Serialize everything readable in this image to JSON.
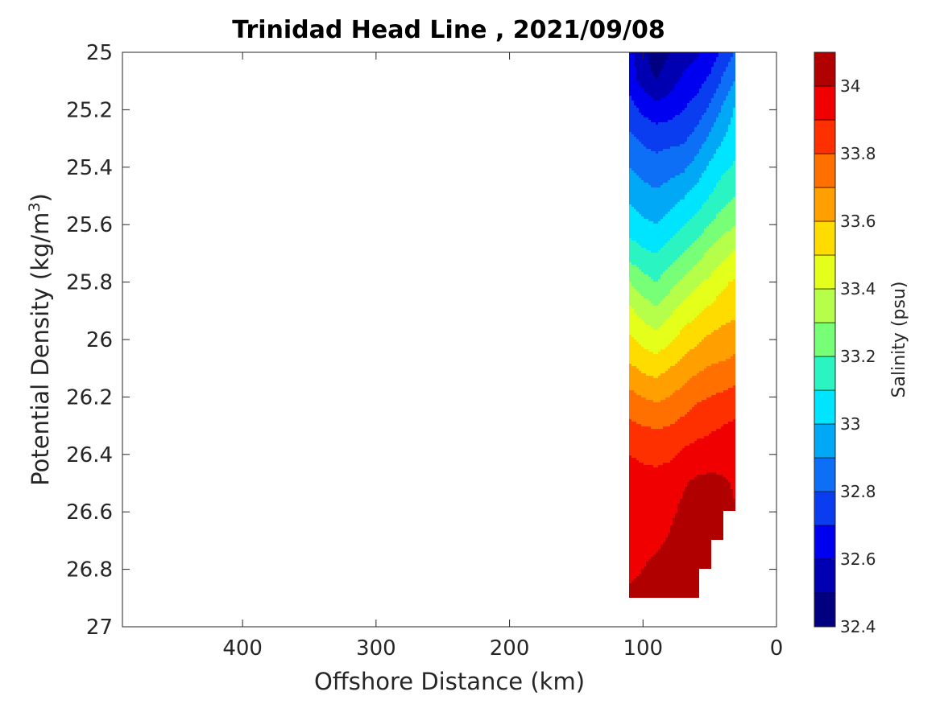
{
  "chart_data": {
    "type": "heatmap",
    "subtype": "filled-contour",
    "title": "Trinidad Head Line , 2021/09/08",
    "xlabel": "Offshore Distance (km)",
    "ylabel_main": "Potential Density (kg/m",
    "ylabel_sup": "3",
    "ylabel_close": ")",
    "x_axis": {
      "range": [
        490,
        0
      ],
      "reversed": true,
      "ticks": [
        400,
        300,
        200,
        100,
        0
      ]
    },
    "y_axis": {
      "range": [
        25,
        27
      ],
      "reversed": true,
      "ticks": [
        25,
        25.2,
        25.4,
        25.6,
        25.8,
        26,
        26.2,
        26.4,
        26.6,
        26.8,
        27
      ]
    },
    "x_tick_labels": [
      "400",
      "300",
      "200",
      "100",
      "0"
    ],
    "y_tick_labels": [
      "25",
      "25.2",
      "25.4",
      "25.6",
      "25.8",
      "26",
      "26.2",
      "26.4",
      "26.6",
      "26.8",
      "27"
    ],
    "colorbar": {
      "label": "Salinity (psu)",
      "range": [
        32.4,
        34.1
      ],
      "contour_step": 0.1,
      "tick_values": [
        32.4,
        32.6,
        32.8,
        33,
        33.2,
        33.4,
        33.6,
        33.8,
        34
      ],
      "tick_labels": [
        "32.4",
        "32.6",
        "32.8",
        "33",
        "33.2",
        "33.4",
        "33.6",
        "33.8",
        "34"
      ],
      "levels": [
        {
          "range": [
            32.4,
            32.5
          ],
          "color": "#000080"
        },
        {
          "range": [
            32.5,
            32.6
          ],
          "color": "#0000b2"
        },
        {
          "range": [
            32.6,
            32.7
          ],
          "color": "#0000f0"
        },
        {
          "range": [
            32.7,
            32.8
          ],
          "color": "#0a3cf0"
        },
        {
          "range": [
            32.8,
            32.9
          ],
          "color": "#0c6ff5"
        },
        {
          "range": [
            32.9,
            33.0
          ],
          "color": "#00a8f5"
        },
        {
          "range": [
            33.0,
            33.1
          ],
          "color": "#00e5ff"
        },
        {
          "range": [
            33.1,
            33.2
          ],
          "color": "#2af5c2"
        },
        {
          "range": [
            33.2,
            33.3
          ],
          "color": "#78ff78"
        },
        {
          "range": [
            33.3,
            33.4
          ],
          "color": "#b5ff4a"
        },
        {
          "range": [
            33.4,
            33.5
          ],
          "color": "#e4ff19"
        },
        {
          "range": [
            33.5,
            33.6
          ],
          "color": "#ffdc00"
        },
        {
          "range": [
            33.6,
            33.7
          ],
          "color": "#ffa000"
        },
        {
          "range": [
            33.7,
            33.8
          ],
          "color": "#ff7000"
        },
        {
          "range": [
            33.8,
            33.9
          ],
          "color": "#ff3000"
        },
        {
          "range": [
            33.9,
            34.0
          ],
          "color": "#f00000"
        },
        {
          "range": [
            34.0,
            34.1
          ],
          "color": "#b00000"
        }
      ]
    },
    "data_extent": {
      "x_range_km": [
        30,
        110
      ],
      "y_range": [
        25,
        26.9
      ],
      "description_bands": [
        {
          "salinity": 32.45,
          "region": "core near 90 km, 25.0-25.05"
        },
        {
          "salinity": 34.05,
          "region": "deep, 25.0 bottom edge below 26.55"
        }
      ]
    },
    "bands": [
      {
        "level": 32.55,
        "top": [
          [
            110,
            25
          ],
          [
            30,
            25
          ]
        ],
        "bottom": [
          [
            110,
            25.0
          ],
          [
            30,
            25.0
          ]
        ]
      }
    ],
    "field_grid": {
      "x": [
        110,
        100,
        90,
        80,
        70,
        60,
        50,
        40,
        30
      ],
      "y": [
        25.0,
        25.1,
        25.2,
        25.3,
        25.4,
        25.5,
        25.6,
        25.7,
        25.8,
        25.9,
        26.0,
        26.1,
        26.2,
        26.3,
        26.4,
        26.5,
        26.6,
        26.7,
        26.8,
        26.9
      ],
      "values": [
        [
          32.62,
          32.52,
          32.44,
          32.5,
          32.56,
          32.58,
          32.64,
          32.72,
          32.82
        ],
        [
          32.66,
          32.56,
          32.5,
          32.56,
          32.62,
          32.66,
          32.72,
          32.82,
          32.92
        ],
        [
          32.74,
          32.68,
          32.64,
          32.66,
          32.7,
          32.74,
          32.82,
          32.92,
          33.02
        ],
        [
          32.82,
          32.78,
          32.76,
          32.77,
          32.78,
          32.84,
          32.92,
          33.0,
          33.06
        ],
        [
          32.9,
          32.86,
          32.84,
          32.86,
          32.88,
          32.94,
          33.02,
          33.08,
          33.12
        ],
        [
          32.98,
          32.94,
          32.92,
          32.95,
          32.99,
          33.04,
          33.1,
          33.16,
          33.2
        ],
        [
          33.05,
          33.02,
          33.0,
          33.04,
          33.09,
          33.14,
          33.2,
          33.26,
          33.3
        ],
        [
          33.16,
          33.12,
          33.1,
          33.15,
          33.2,
          33.26,
          33.32,
          33.37,
          33.42
        ],
        [
          33.3,
          33.24,
          33.2,
          33.26,
          33.32,
          33.38,
          33.42,
          33.48,
          33.52
        ],
        [
          33.42,
          33.36,
          33.32,
          33.38,
          33.44,
          33.48,
          33.52,
          33.56,
          33.58
        ],
        [
          33.52,
          33.47,
          33.44,
          33.48,
          33.54,
          33.58,
          33.62,
          33.64,
          33.66
        ],
        [
          33.62,
          33.58,
          33.56,
          33.6,
          33.64,
          33.68,
          33.71,
          33.72,
          33.74
        ],
        [
          33.73,
          33.7,
          33.68,
          33.7,
          33.74,
          33.78,
          33.8,
          33.82,
          33.84
        ],
        [
          33.82,
          33.8,
          33.79,
          33.8,
          33.83,
          33.86,
          33.88,
          33.9,
          33.92
        ],
        [
          33.9,
          33.88,
          33.87,
          33.88,
          33.92,
          33.94,
          33.95,
          33.97,
          33.98
        ],
        [
          33.95,
          33.94,
          33.94,
          33.96,
          33.99,
          34.02,
          34.03,
          34.01,
          33.99
        ],
        [
          33.96,
          33.95,
          33.96,
          33.98,
          34.02,
          34.05,
          34.04,
          34.03,
          null
        ],
        [
          33.97,
          33.97,
          33.98,
          34.01,
          34.05,
          34.07,
          34.06,
          34.04,
          null
        ],
        [
          33.98,
          34.0,
          34.03,
          34.05,
          34.08,
          34.09,
          null,
          null,
          null
        ],
        [
          34.02,
          34.04,
          34.06,
          34.09,
          34.11,
          34.11,
          null,
          null,
          null
        ]
      ],
      "right_edge_profile": [
        [
          25.0,
          30
        ],
        [
          26.5,
          30
        ],
        [
          26.6,
          40
        ],
        [
          26.7,
          40
        ],
        [
          26.7,
          48
        ],
        [
          26.8,
          58
        ],
        [
          26.9,
          60
        ]
      ]
    }
  }
}
